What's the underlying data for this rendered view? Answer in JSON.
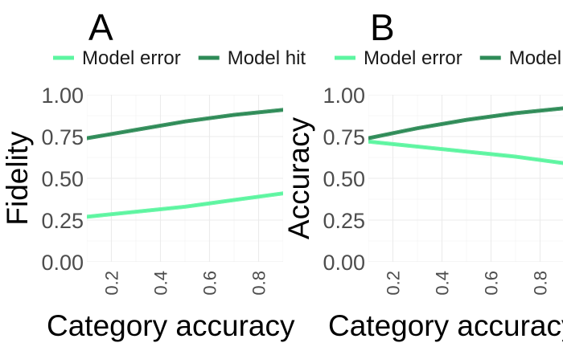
{
  "chart_data": [
    {
      "type": "line",
      "panel_label": "A",
      "title": "",
      "xlabel": "Category accuracy",
      "ylabel": "Fidelity",
      "xlim": [
        0.1,
        0.9
      ],
      "ylim": [
        0.0,
        1.0
      ],
      "x_ticks": [
        0.2,
        0.4,
        0.6,
        0.8
      ],
      "y_ticks": [
        0.0,
        0.25,
        0.5,
        0.75,
        1.0
      ],
      "x_tick_labels": [
        "0.2",
        "0.4",
        "0.6",
        "0.8"
      ],
      "y_tick_labels": [
        "0.00",
        "0.25",
        "0.50",
        "0.75",
        "1.00"
      ],
      "grid": true,
      "legend_position": "top",
      "series": [
        {
          "name": "Model error",
          "color": "#5cf5a0",
          "x": [
            0.1,
            0.3,
            0.5,
            0.7,
            0.9
          ],
          "y": [
            0.27,
            0.3,
            0.33,
            0.37,
            0.41
          ],
          "band": 0.012
        },
        {
          "name": "Model hit",
          "color": "#2e8b57",
          "x": [
            0.1,
            0.3,
            0.5,
            0.7,
            0.9
          ],
          "y": [
            0.74,
            0.79,
            0.84,
            0.88,
            0.91
          ],
          "band": 0.012
        }
      ]
    },
    {
      "type": "line",
      "panel_label": "B",
      "title": "",
      "xlabel": "Category accuracy",
      "ylabel": "Accuracy",
      "xlim": [
        0.1,
        0.9
      ],
      "ylim": [
        0.0,
        1.0
      ],
      "x_ticks": [
        0.2,
        0.4,
        0.6,
        0.8
      ],
      "y_ticks": [
        0.0,
        0.25,
        0.5,
        0.75,
        1.0
      ],
      "x_tick_labels": [
        "0.2",
        "0.4",
        "0.6",
        "0.8"
      ],
      "y_tick_labels": [
        "0.00",
        "0.25",
        "0.50",
        "0.75",
        "1.00"
      ],
      "grid": true,
      "legend_position": "top",
      "series": [
        {
          "name": "Model error",
          "color": "#5cf5a0",
          "x": [
            0.1,
            0.3,
            0.5,
            0.7,
            0.9
          ],
          "y": [
            0.72,
            0.69,
            0.66,
            0.63,
            0.59
          ],
          "band": 0.012
        },
        {
          "name": "Model hit",
          "color": "#2e8b57",
          "x": [
            0.1,
            0.3,
            0.5,
            0.7,
            0.9
          ],
          "y": [
            0.74,
            0.8,
            0.85,
            0.89,
            0.92
          ],
          "band": 0.012
        }
      ]
    }
  ]
}
